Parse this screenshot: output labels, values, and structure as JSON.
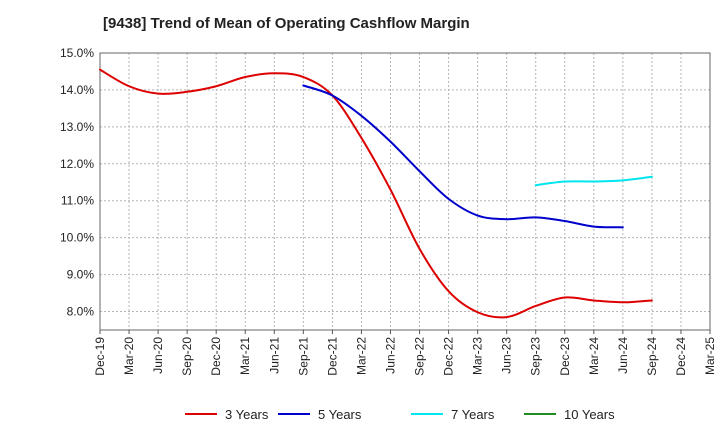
{
  "chart_data": {
    "type": "line",
    "title": "[9438]  Trend of Mean of Operating Cashflow Margin",
    "xlabel": "",
    "ylabel": "",
    "x_tick_labels": [
      "Dec-19",
      "Mar-20",
      "Jun-20",
      "Sep-20",
      "Dec-20",
      "Mar-21",
      "Jun-21",
      "Sep-21",
      "Dec-21",
      "Mar-22",
      "Jun-22",
      "Sep-22",
      "Dec-22",
      "Mar-23",
      "Jun-23",
      "Sep-23",
      "Dec-23",
      "Mar-24",
      "Jun-24",
      "Sep-24",
      "Dec-24",
      "Mar-25"
    ],
    "y_tick_labels": [
      "8.0%",
      "9.0%",
      "10.0%",
      "11.0%",
      "12.0%",
      "13.0%",
      "14.0%",
      "15.0%"
    ],
    "ylim": [
      7.5,
      15.0
    ],
    "y_ticks": [
      8,
      9,
      10,
      11,
      12,
      13,
      14,
      15
    ],
    "grid": true,
    "legend_position": "bottom",
    "series": [
      {
        "name": "3 Years",
        "color": "#dd0000",
        "start_index": 0,
        "values": [
          14.55,
          14.1,
          13.9,
          13.95,
          14.1,
          14.35,
          14.45,
          14.35,
          13.85,
          12.7,
          11.3,
          9.7,
          8.55,
          7.98,
          7.85,
          8.15,
          8.38,
          8.3,
          8.25,
          8.3
        ]
      },
      {
        "name": "5 Years",
        "color": "#0000cc",
        "start_index": 7,
        "values": [
          14.12,
          13.85,
          13.3,
          12.6,
          11.8,
          11.05,
          10.6,
          10.5,
          10.55,
          10.45,
          10.3,
          10.28
        ]
      },
      {
        "name": "7 Years",
        "color": "#00e5ee",
        "start_index": 15,
        "values": [
          11.42,
          11.52,
          11.52,
          11.55,
          11.65
        ]
      },
      {
        "name": "10 Years",
        "color": "#228b22",
        "start_index": 0,
        "values": []
      }
    ]
  }
}
